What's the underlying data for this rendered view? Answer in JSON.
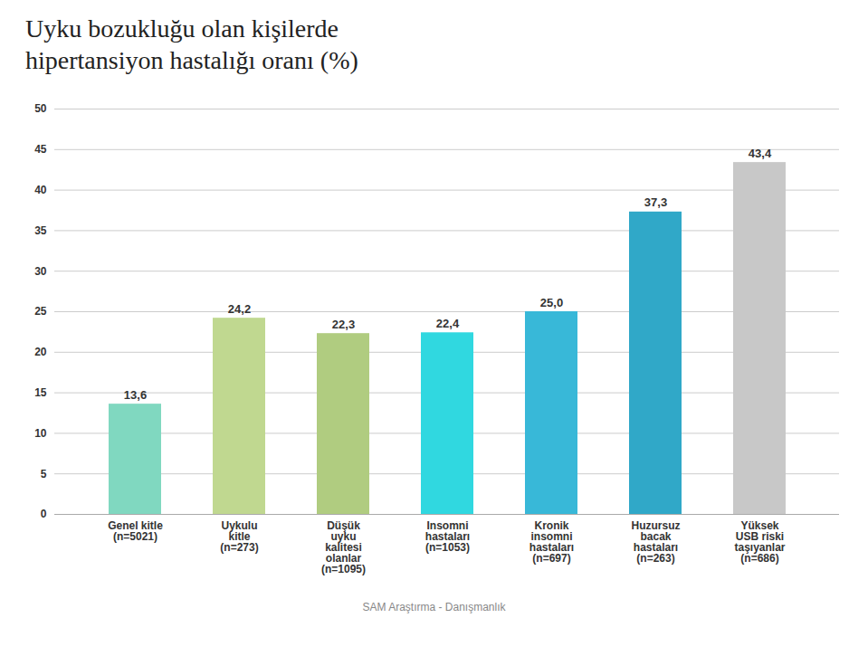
{
  "chart_data": {
    "type": "bar",
    "title": "Uyku bozukluğu olan kişilerde\nhipertansiyon hastalığı oranı (%)",
    "caption": "SAM Araştırma - Danışmanlık",
    "categories": [
      "Genel kitle\n(n=5021)",
      "Uykulu\nkitle\n(n=273)",
      "Düşük\nuyku\nkalitesi\nolanlar\n(n=1095)",
      "Insomni\nhastaları\n(n=1053)",
      "Kronik\ninsomni\nhastaları\n(n=697)",
      "Huzursuz\nbacak\nhastaları\n(n=263)",
      "Yüksek\nUSB riski\ntaşıyanlar\n(n=686)"
    ],
    "values": [
      13.6,
      24.2,
      22.3,
      22.4,
      25.0,
      37.3,
      43.4
    ],
    "value_labels": [
      "13,6",
      "24,2",
      "22,3",
      "22,4",
      "25,0",
      "37,3",
      "43,4"
    ],
    "colors": [
      "#80d8c0",
      "#c0d890",
      "#b0cc80",
      "#30d8e0",
      "#38b8d8",
      "#30a8c8",
      "#c8c8c8"
    ],
    "data_labels": true,
    "ylim": [
      0,
      50
    ],
    "yticks": [
      0,
      5,
      10,
      15,
      20,
      25,
      30,
      35,
      40,
      45,
      50
    ],
    "grid": true
  }
}
